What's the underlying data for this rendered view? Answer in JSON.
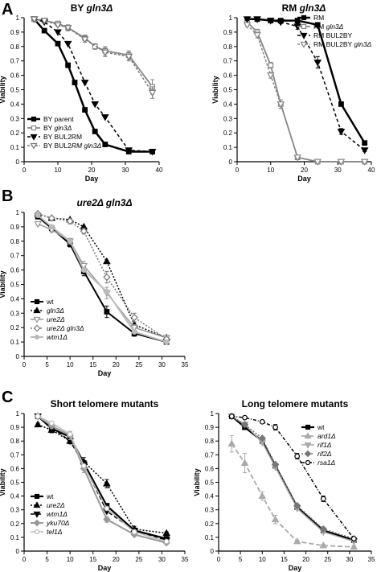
{
  "figure": {
    "panel_letters": [
      "A",
      "B",
      "C"
    ]
  },
  "chart_data": [
    {
      "type": "line",
      "panel": "A",
      "title": "BY gln3Δ",
      "title_parts": [
        {
          "t": "BY ",
          "i": false
        },
        {
          "t": "gln3Δ",
          "i": true
        }
      ],
      "xlabel": "Day",
      "ylabel": "Viability",
      "xlim": [
        0,
        40
      ],
      "ylim": [
        0,
        1.0
      ],
      "xticks": [
        0,
        10,
        20,
        30,
        40
      ],
      "yticks": [
        0,
        0.1,
        0.2,
        0.3,
        0.4,
        0.5,
        0.6,
        0.7,
        0.8,
        0.9,
        1.0
      ],
      "legend_position": "bottom-left",
      "series": [
        {
          "name": "BY parent",
          "label_parts": [
            {
              "t": "BY parent",
              "i": false
            }
          ],
          "color": "#000000",
          "dash": "",
          "marker": "square",
          "width": 2.5,
          "x": [
            3,
            6,
            10,
            13,
            15,
            18,
            21,
            24,
            31,
            38
          ],
          "y": [
            0.99,
            0.91,
            0.82,
            0.67,
            0.55,
            0.36,
            0.21,
            0.12,
            0.07,
            0.07
          ]
        },
        {
          "name": "BY gln3Δ",
          "label_parts": [
            {
              "t": "BY ",
              "i": false
            },
            {
              "t": "gln3Δ",
              "i": true
            }
          ],
          "color": "#888888",
          "dash": "",
          "marker": "square-open",
          "width": 1.8,
          "x": [
            3,
            6,
            10,
            13,
            18,
            21,
            24,
            31,
            38
          ],
          "y": [
            0.99,
            0.98,
            0.96,
            0.93,
            0.86,
            0.8,
            0.77,
            0.74,
            0.52
          ],
          "err": [
            0.01,
            0.01,
            0.01,
            0.02,
            0.02,
            0.02,
            0.03,
            0.03,
            0.05
          ]
        },
        {
          "name": "BY BUL2RM",
          "label_parts": [
            {
              "t": "BY BUL2RM",
              "i": false
            }
          ],
          "color": "#000000",
          "dash": "4,3",
          "marker": "tri-down",
          "width": 1.5,
          "x": [
            3,
            6,
            10,
            13,
            18,
            21,
            24,
            31,
            38
          ],
          "y": [
            0.99,
            0.97,
            0.9,
            0.82,
            0.55,
            0.4,
            0.31,
            0.08,
            0.07
          ]
        },
        {
          "name": "BY BUL2RM gln3Δ",
          "label_parts": [
            {
              "t": "BY BUL2",
              "i": false
            },
            {
              "t": "RM gln3Δ",
              "i": true
            }
          ],
          "color": "#777777",
          "dash": "3,2",
          "marker": "tri-down-open",
          "width": 1.5,
          "x": [
            3,
            6,
            10,
            13,
            18,
            24,
            31,
            38
          ],
          "y": [
            0.99,
            0.98,
            0.95,
            0.93,
            0.85,
            0.76,
            0.73,
            0.48
          ],
          "err": [
            0.01,
            0.01,
            0.01,
            0.02,
            0.02,
            0.03,
            0.03,
            0.04
          ]
        }
      ]
    },
    {
      "type": "line",
      "panel": "A",
      "title": "RM gln3Δ",
      "title_parts": [
        {
          "t": "RM ",
          "i": false
        },
        {
          "t": "gln3Δ",
          "i": true
        }
      ],
      "xlabel": "Day",
      "ylabel": "Viability",
      "xlim": [
        0,
        40
      ],
      "ylim": [
        0,
        1.0
      ],
      "xticks": [
        0,
        10,
        20,
        30,
        40
      ],
      "yticks": [
        0,
        0.1,
        0.2,
        0.3,
        0.4,
        0.5,
        0.6,
        0.7,
        0.8,
        0.9,
        1.0
      ],
      "legend_position": "top-right",
      "series": [
        {
          "name": "RM",
          "label_parts": [
            {
              "t": "RM",
              "i": false
            }
          ],
          "color": "#000000",
          "dash": "",
          "marker": "square",
          "width": 2.5,
          "x": [
            3,
            6,
            10,
            13,
            18,
            24,
            31,
            38
          ],
          "y": [
            0.99,
            0.99,
            0.98,
            0.98,
            0.98,
            0.95,
            0.4,
            0.13
          ]
        },
        {
          "name": "RM gln3Δ",
          "label_parts": [
            {
              "t": "RM ",
              "i": false
            },
            {
              "t": "gln3Δ",
              "i": true
            }
          ],
          "color": "#888888",
          "dash": "",
          "marker": "square-open",
          "width": 1.8,
          "x": [
            3,
            6,
            10,
            13,
            18,
            24,
            31,
            38
          ],
          "y": [
            0.97,
            0.9,
            0.67,
            0.4,
            0.03,
            0.0,
            0.0,
            0.0
          ],
          "err": [
            0.01,
            0.02,
            0.02,
            0.03,
            0.01,
            0,
            0,
            0
          ]
        },
        {
          "name": "RM BUL2BY",
          "label_parts": [
            {
              "t": "RM BUL2BY",
              "i": false
            }
          ],
          "color": "#000000",
          "dash": "4,3",
          "marker": "tri-down",
          "width": 1.5,
          "x": [
            3,
            6,
            10,
            13,
            18,
            24,
            31,
            38
          ],
          "y": [
            0.99,
            0.99,
            0.98,
            0.97,
            0.94,
            0.69,
            0.21,
            0.08
          ],
          "err": [
            0.01,
            0.01,
            0.01,
            0.01,
            0.02,
            0.04,
            0.02,
            0.01
          ]
        },
        {
          "name": "RM BUL2BY gln3Δ",
          "label_parts": [
            {
              "t": "RM BUL2BY ",
              "i": false
            },
            {
              "t": "gln3Δ",
              "i": true
            }
          ],
          "color": "#888888",
          "dash": "3,2",
          "marker": "tri-down-open",
          "width": 1.5,
          "x": [
            3,
            6,
            10,
            13,
            18,
            24,
            31,
            38
          ],
          "y": [
            0.95,
            0.88,
            0.6,
            0.4,
            0.03,
            0.0,
            0.0,
            0.0
          ],
          "err": [
            0.01,
            0.02,
            0.02,
            0.03,
            0.01,
            0,
            0,
            0
          ]
        }
      ]
    },
    {
      "type": "line",
      "panel": "B",
      "title": "ure2Δ gln3Δ",
      "title_parts": [
        {
          "t": "ure2Δ gln3Δ",
          "i": true
        }
      ],
      "xlabel": "Day",
      "ylabel": "Viability",
      "xlim": [
        0,
        35
      ],
      "ylim": [
        0,
        1.0
      ],
      "xticks": [
        0,
        5,
        10,
        15,
        20,
        25,
        30,
        35
      ],
      "yticks": [
        0,
        0.1,
        0.2,
        0.3,
        0.4,
        0.5,
        0.6,
        0.7,
        0.8,
        0.9,
        1.0
      ],
      "legend_position": "bottom-left",
      "series": [
        {
          "name": "wt",
          "label_parts": [
            {
              "t": "wt",
              "i": false
            }
          ],
          "color": "#000000",
          "dash": "",
          "marker": "square",
          "width": 2,
          "x": [
            3,
            6,
            10,
            13,
            18,
            24,
            31
          ],
          "y": [
            0.97,
            0.89,
            0.78,
            0.59,
            0.31,
            0.16,
            0.1
          ],
          "err": [
            0.01,
            0.02,
            0.02,
            0.03,
            0.04,
            0.02,
            0.01
          ]
        },
        {
          "name": "gln3Δ",
          "label_parts": [
            {
              "t": "gln3Δ",
              "i": true
            }
          ],
          "color": "#000000",
          "dash": "2,2",
          "marker": "tri-up",
          "width": 1.5,
          "x": [
            3,
            6,
            10,
            13,
            18,
            24,
            31
          ],
          "y": [
            0.99,
            0.96,
            0.95,
            0.9,
            0.66,
            0.22,
            0.13
          ]
        },
        {
          "name": "ure2Δ",
          "label_parts": [
            {
              "t": "ure2Δ",
              "i": true
            }
          ],
          "color": "#999999",
          "dash": "",
          "marker": "tri-down-open",
          "width": 1.5,
          "x": [
            3,
            6,
            10,
            13,
            18,
            24,
            31
          ],
          "y": [
            0.92,
            0.88,
            0.8,
            0.63,
            0.44,
            0.2,
            0.13
          ],
          "err": [
            0.01,
            0.02,
            0.02,
            0.03,
            0.04,
            0.02,
            0.01
          ]
        },
        {
          "name": "ure2Δ gln3Δ",
          "label_parts": [
            {
              "t": "ure2Δ gln3Δ",
              "i": true
            }
          ],
          "color": "#777777",
          "dash": "2,2",
          "marker": "diamond-open",
          "width": 1.5,
          "x": [
            3,
            6,
            10,
            13,
            18,
            24,
            31
          ],
          "y": [
            0.99,
            0.96,
            0.94,
            0.87,
            0.55,
            0.27,
            0.12
          ],
          "err": [
            0.01,
            0.01,
            0.02,
            0.02,
            0.04,
            0.03,
            0.01
          ]
        },
        {
          "name": "wtm1Δ",
          "label_parts": [
            {
              "t": "wtm1Δ",
              "i": true
            }
          ],
          "color": "#bbbbbb",
          "dash": "",
          "marker": "circle",
          "width": 2,
          "x": [
            3,
            6,
            10,
            13,
            18,
            24,
            31
          ],
          "y": [
            0.98,
            0.9,
            0.8,
            0.6,
            0.45,
            0.17,
            0.1
          ]
        }
      ]
    },
    {
      "type": "line",
      "panel": "C",
      "title": "Short telomere mutants",
      "title_parts": [
        {
          "t": "Short telomere mutants",
          "i": false
        }
      ],
      "xlabel": "Day",
      "ylabel": "Viability",
      "xlim": [
        0,
        35
      ],
      "ylim": [
        0,
        1.0
      ],
      "xticks": [
        0,
        5,
        10,
        15,
        20,
        25,
        30,
        35
      ],
      "yticks": [
        0,
        0.1,
        0.2,
        0.3,
        0.4,
        0.5,
        0.6,
        0.7,
        0.8,
        0.9,
        1.0
      ],
      "legend_position": "bottom-left",
      "series": [
        {
          "name": "wt",
          "label_parts": [
            {
              "t": "wt",
              "i": false
            }
          ],
          "color": "#000000",
          "dash": "",
          "marker": "square",
          "width": 2.2,
          "x": [
            3,
            6,
            10,
            13,
            18,
            24,
            31
          ],
          "y": [
            0.98,
            0.89,
            0.83,
            0.64,
            0.33,
            0.15,
            0.09
          ]
        },
        {
          "name": "ure2Δ",
          "label_parts": [
            {
              "t": "ure2Δ",
              "i": true
            }
          ],
          "color": "#000000",
          "dash": "2,2",
          "marker": "tri-up",
          "width": 1.5,
          "x": [
            3,
            6,
            10,
            13,
            18,
            24,
            31
          ],
          "y": [
            0.92,
            0.88,
            0.8,
            0.65,
            0.49,
            0.16,
            0.13
          ],
          "err": [
            0.01,
            0.02,
            0.02,
            0.03,
            0.03,
            0.02,
            0.01
          ]
        },
        {
          "name": "wtm1Δ",
          "label_parts": [
            {
              "t": "wtm1Δ",
              "i": true
            }
          ],
          "color": "#000000",
          "dash": "5,3",
          "marker": "tri-down",
          "width": 1.5,
          "x": [
            3,
            6,
            10,
            13,
            18,
            24,
            31
          ],
          "y": [
            0.98,
            0.9,
            0.8,
            0.63,
            0.29,
            0.15,
            0.08
          ]
        },
        {
          "name": "yku70Δ",
          "label_parts": [
            {
              "t": "yku70Δ",
              "i": true
            }
          ],
          "color": "#999999",
          "dash": "",
          "marker": "diamond",
          "width": 2,
          "x": [
            3,
            6,
            10,
            13,
            18,
            24,
            31
          ],
          "y": [
            0.98,
            0.91,
            0.84,
            0.6,
            0.23,
            0.12,
            0.06
          ],
          "err": [
            0.01,
            0.02,
            0.03,
            0.03,
            0.02,
            0.01,
            0.01
          ]
        },
        {
          "name": "tel1Δ",
          "label_parts": [
            {
              "t": "tel1Δ",
              "i": true
            }
          ],
          "color": "#bbbbbb",
          "dash": "",
          "marker": "circle-open",
          "width": 1.5,
          "x": [
            3,
            6,
            10,
            13,
            18,
            24,
            31
          ],
          "y": [
            0.98,
            0.93,
            0.85,
            0.62,
            0.31,
            0.14,
            0.07
          ]
        }
      ]
    },
    {
      "type": "line",
      "panel": "C",
      "title": "Long telomere mutants",
      "title_parts": [
        {
          "t": "Long telomere mutants",
          "i": false
        }
      ],
      "xlabel": "Day",
      "ylabel": "Viability",
      "xlim": [
        0,
        35
      ],
      "ylim": [
        0,
        1.0
      ],
      "xticks": [
        0,
        5,
        10,
        15,
        20,
        25,
        30,
        35
      ],
      "yticks": [
        0,
        0.1,
        0.2,
        0.3,
        0.4,
        0.5,
        0.6,
        0.7,
        0.8,
        0.9,
        1.0
      ],
      "legend_position": "top-right",
      "series": [
        {
          "name": "wt",
          "label_parts": [
            {
              "t": "wt",
              "i": false
            }
          ],
          "color": "#000000",
          "dash": "",
          "marker": "square",
          "width": 2.2,
          "x": [
            3,
            6,
            10,
            13,
            18,
            24,
            31
          ],
          "y": [
            0.98,
            0.9,
            0.8,
            0.62,
            0.32,
            0.15,
            0.08
          ]
        },
        {
          "name": "ard1Δ",
          "label_parts": [
            {
              "t": "ard1Δ",
              "i": true
            }
          ],
          "color": "#aaaaaa",
          "dash": "6,3",
          "marker": "tri-up",
          "width": 1.8,
          "x": [
            3,
            6,
            10,
            13,
            18,
            24,
            31
          ],
          "y": [
            0.78,
            0.64,
            0.4,
            0.23,
            0.07,
            0.04,
            0.03
          ],
          "err": [
            0.06,
            0.07,
            0.03,
            0.03,
            0.01,
            0.01,
            0.01
          ]
        },
        {
          "name": "rif1Δ",
          "label_parts": [
            {
              "t": "rif1Δ",
              "i": true
            }
          ],
          "color": "#aaaaaa",
          "dash": "",
          "marker": "tri-down",
          "width": 1.5,
          "x": [
            3,
            6,
            10,
            13,
            18,
            24,
            31
          ],
          "y": [
            0.98,
            0.92,
            0.79,
            0.61,
            0.31,
            0.14,
            0.07
          ]
        },
        {
          "name": "rif2Δ",
          "label_parts": [
            {
              "t": "rif2Δ",
              "i": true
            }
          ],
          "color": "#777777",
          "dash": "2,2",
          "marker": "diamond",
          "width": 1.5,
          "x": [
            3,
            6,
            10,
            13,
            18,
            24,
            31
          ],
          "y": [
            0.98,
            0.92,
            0.82,
            0.63,
            0.33,
            0.16,
            0.09
          ]
        },
        {
          "name": "rsa1Δ",
          "label_parts": [
            {
              "t": "rsa1Δ",
              "i": true
            }
          ],
          "color": "#000000",
          "dash": "4,2,1,2",
          "marker": "circle-open",
          "width": 1.5,
          "x": [
            3,
            6,
            10,
            13,
            18,
            24,
            31
          ],
          "y": [
            0.98,
            0.97,
            0.94,
            0.9,
            0.69,
            0.38,
            0.09
          ],
          "err": [
            0.01,
            0.01,
            0.01,
            0.02,
            0.02,
            0.02,
            0.01
          ]
        }
      ]
    }
  ]
}
